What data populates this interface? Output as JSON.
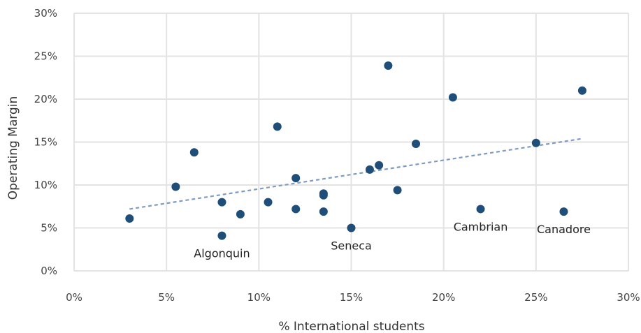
{
  "chart_data": {
    "type": "scatter",
    "title": "",
    "xlabel": "% International students",
    "ylabel": "Operating Margin",
    "xlim": [
      0,
      30
    ],
    "ylim": [
      0,
      30
    ],
    "x_ticks": [
      0,
      5,
      10,
      15,
      20,
      25,
      30
    ],
    "y_ticks": [
      0,
      5,
      10,
      15,
      20,
      25,
      30
    ],
    "x_tick_labels": [
      "0%",
      "5%",
      "10%",
      "15%",
      "20%",
      "25%",
      "30%"
    ],
    "y_tick_labels": [
      "0%",
      "5%",
      "10%",
      "15%",
      "20%",
      "25%",
      "30%"
    ],
    "grid": true,
    "colors": {
      "points": "#1f4e79",
      "trendline": "#7f9cc0",
      "grid": "#e3e3e3"
    },
    "points": [
      {
        "x": 3.0,
        "y": 6.1
      },
      {
        "x": 5.5,
        "y": 9.8
      },
      {
        "x": 6.5,
        "y": 13.8
      },
      {
        "x": 8.0,
        "y": 8.0
      },
      {
        "x": 8.0,
        "y": 4.1
      },
      {
        "x": 9.0,
        "y": 6.6
      },
      {
        "x": 10.5,
        "y": 8.0
      },
      {
        "x": 11.0,
        "y": 16.8
      },
      {
        "x": 12.0,
        "y": 10.8
      },
      {
        "x": 12.0,
        "y": 7.2
      },
      {
        "x": 13.5,
        "y": 9.0
      },
      {
        "x": 13.5,
        "y": 8.8
      },
      {
        "x": 13.5,
        "y": 6.9
      },
      {
        "x": 15.0,
        "y": 5.0
      },
      {
        "x": 16.0,
        "y": 11.8
      },
      {
        "x": 16.5,
        "y": 12.3
      },
      {
        "x": 17.0,
        "y": 23.9
      },
      {
        "x": 17.5,
        "y": 9.4
      },
      {
        "x": 18.5,
        "y": 14.8
      },
      {
        "x": 20.5,
        "y": 20.2
      },
      {
        "x": 22.0,
        "y": 7.2
      },
      {
        "x": 25.0,
        "y": 14.9
      },
      {
        "x": 26.5,
        "y": 6.9
      },
      {
        "x": 27.5,
        "y": 21.0
      }
    ],
    "trendline": {
      "x": [
        3.0,
        27.5
      ],
      "y": [
        7.2,
        15.4
      ]
    },
    "annotations": [
      {
        "text": "Algonquin",
        "x": 8.0,
        "y": 4.1
      },
      {
        "text": "Seneca",
        "x": 15.0,
        "y": 5.0
      },
      {
        "text": "Cambrian",
        "x": 22.0,
        "y": 7.2
      },
      {
        "text": "Canadore",
        "x": 26.5,
        "y": 6.9
      }
    ]
  }
}
